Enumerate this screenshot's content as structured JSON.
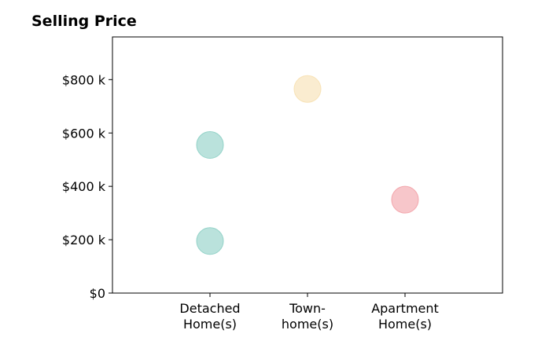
{
  "chart_data": {
    "type": "scatter",
    "title": "Selling Price",
    "xlabel": "",
    "ylabel": "",
    "categories": [
      [
        "Detached",
        "Home(s)"
      ],
      [
        "Town-",
        "home(s)"
      ],
      [
        "Apartment",
        "Home(s)"
      ]
    ],
    "y_ticks": [
      {
        "value": 0,
        "label": "$0"
      },
      {
        "value": 200,
        "label": "$200 k"
      },
      {
        "value": 400,
        "label": "$400 k"
      },
      {
        "value": 600,
        "label": "$600 k"
      },
      {
        "value": 800,
        "label": "$800 k"
      }
    ],
    "ylim": [
      0,
      960
    ],
    "xlim": [
      -1,
      3
    ],
    "grid": false,
    "points": [
      {
        "category": 0,
        "value": 555,
        "color": "#8ccfc4"
      },
      {
        "category": 0,
        "value": 195,
        "color": "#8ccfc4"
      },
      {
        "category": 1,
        "value": 765,
        "color": "#f7e0b0"
      },
      {
        "category": 2,
        "value": 350,
        "color": "#f2a0a6"
      }
    ]
  }
}
